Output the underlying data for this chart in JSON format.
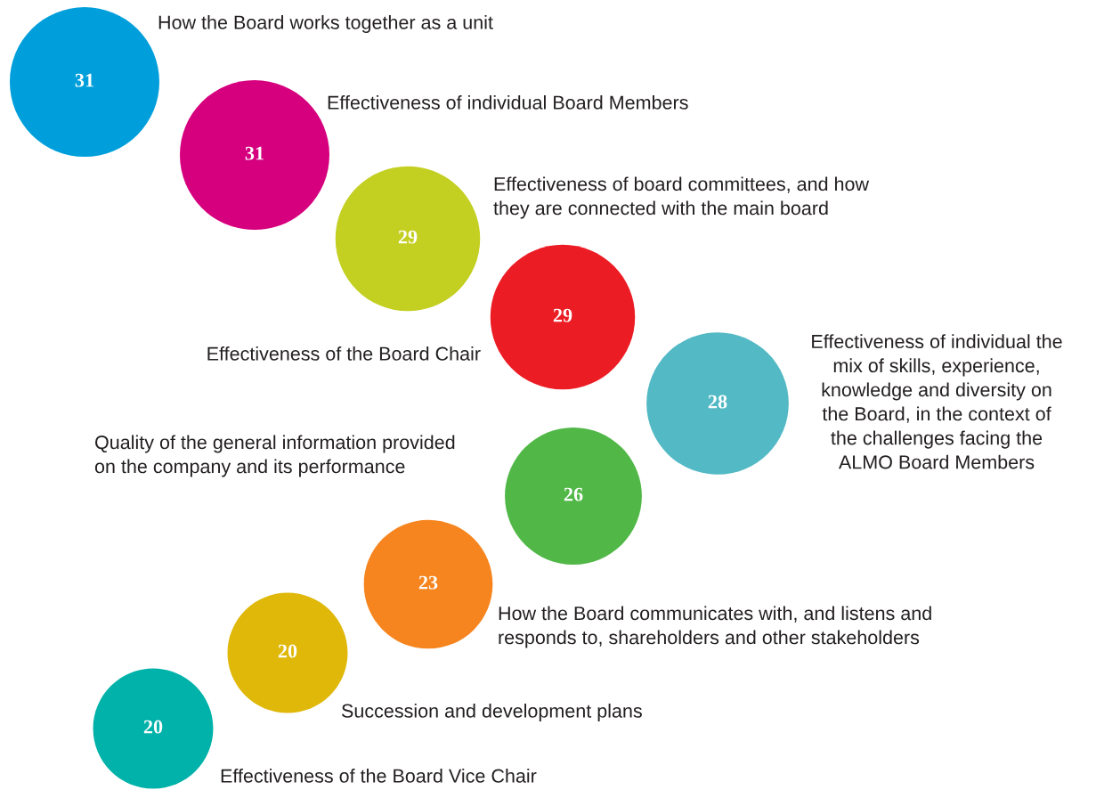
{
  "chart_data": {
    "type": "other",
    "categories": [
      "How the Board works together as a unit",
      "Effectiveness of individual Board Members",
      "Effectiveness of board committees, and how\nthey are connected with the main board",
      "Effectiveness of the Board Chair",
      "Effectiveness of individual the\nmix of skills, experience,\nknowledge and diversity on\nthe Board, in the context of\nthe challenges facing the\nALMO Board Members",
      "Quality of the general information provided\non the company and its performance",
      "How the Board communicates with, and listens and\nresponds to, shareholders and other stakeholders",
      "Succession and development plans",
      "Effectiveness of the Board Vice Chair"
    ],
    "values": [
      31,
      31,
      29,
      29,
      28,
      26,
      23,
      20,
      20
    ],
    "colors": [
      "#009fdb",
      "#d6007f",
      "#c3cf21",
      "#ec1c24",
      "#52b9c5",
      "#51b848",
      "#f6851f",
      "#dfb80a",
      "#00b2a9"
    ],
    "data_labels": true
  }
}
